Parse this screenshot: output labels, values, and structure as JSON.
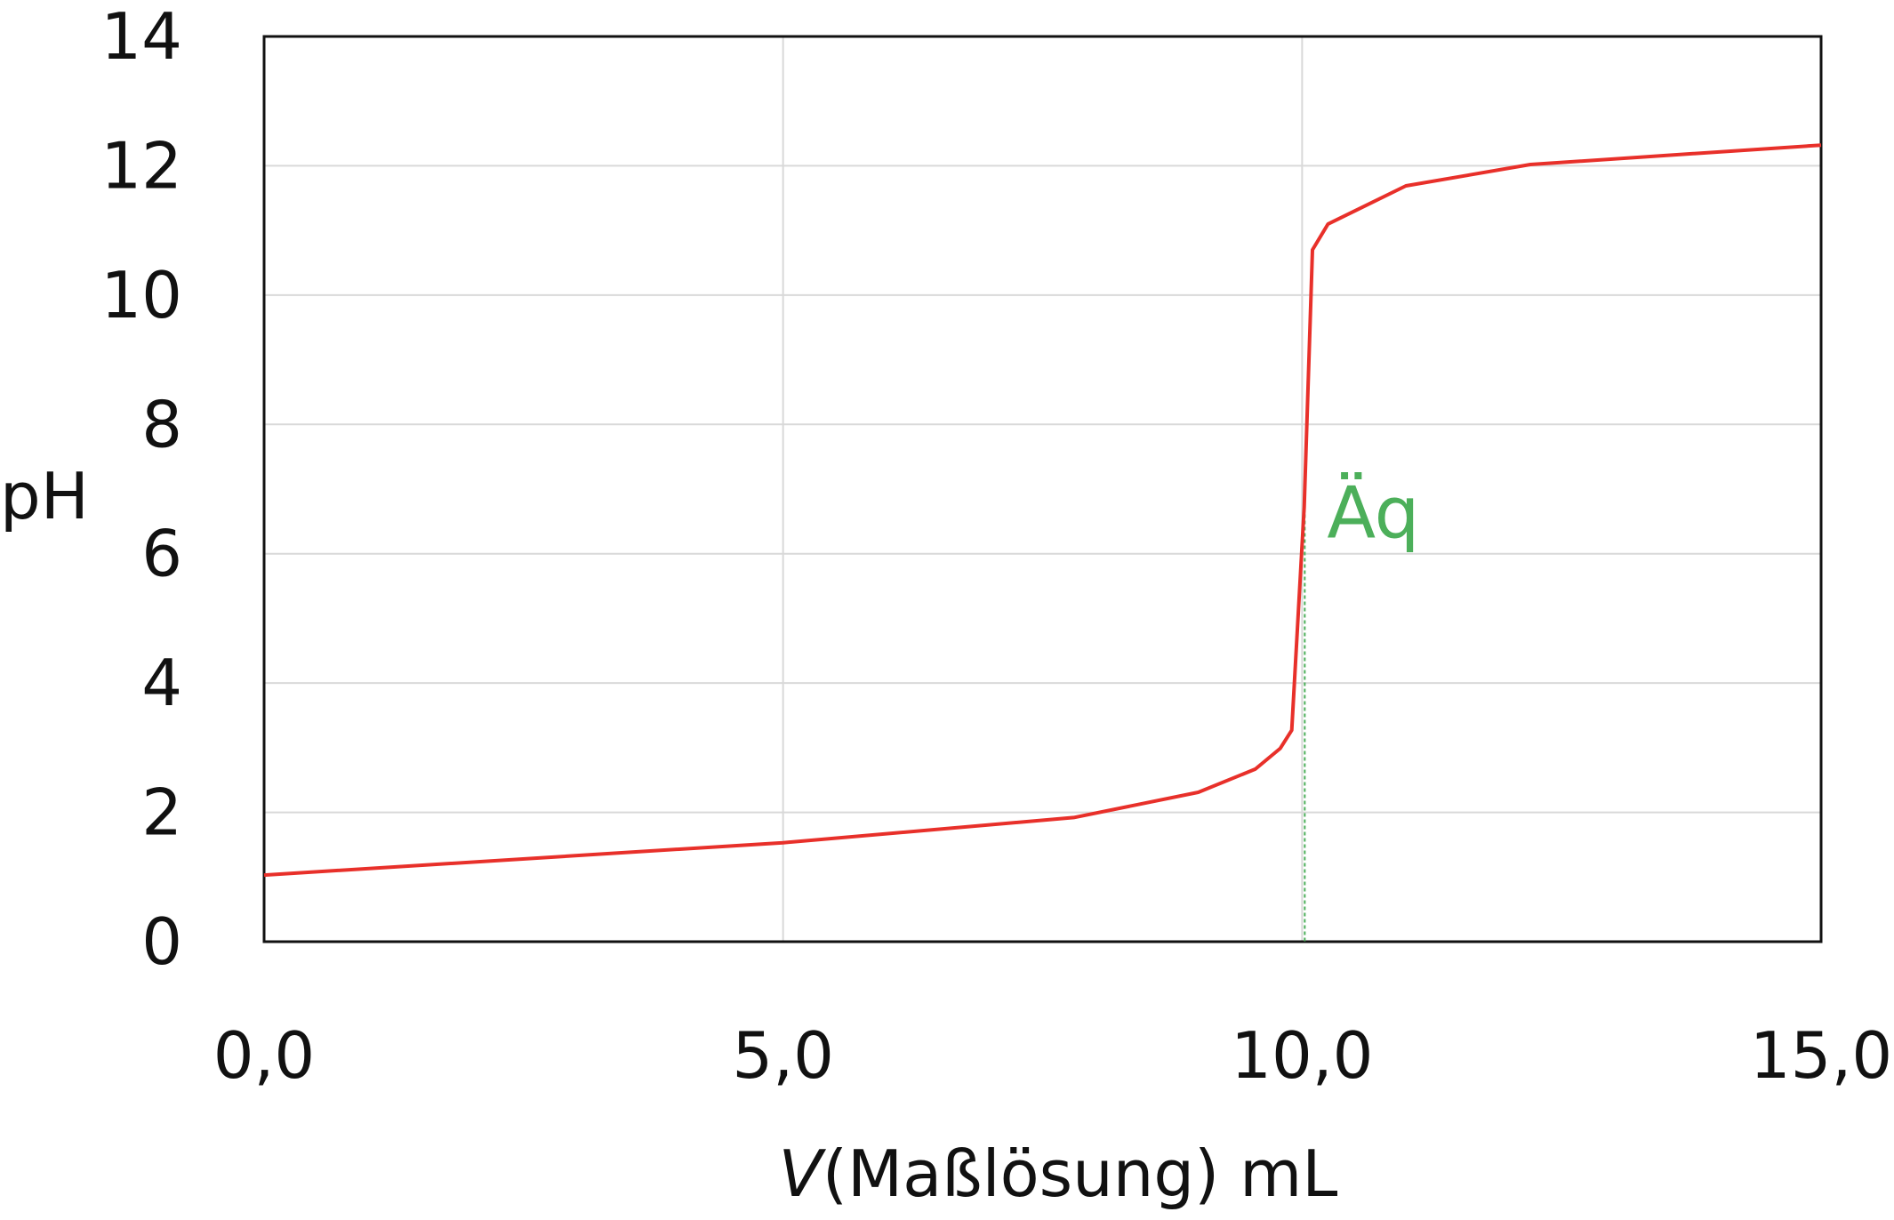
{
  "chart_data": {
    "type": "line",
    "title": "",
    "xlabel_var": "V",
    "xlabel_rest": "(Maßlösung) mL",
    "ylabel": "pH",
    "xlim": [
      0,
      15
    ],
    "ylim": [
      0,
      14
    ],
    "xticks": [
      0,
      5,
      10,
      15
    ],
    "xtick_labels": [
      "0,0",
      "5,0",
      "10,0",
      "15,0"
    ],
    "yticks": [
      0,
      2,
      4,
      6,
      8,
      10,
      12,
      14
    ],
    "ytick_labels": [
      "0",
      "2",
      "4",
      "6",
      "8",
      "10",
      "12",
      "14"
    ],
    "grid": true,
    "series": [
      {
        "name": "pH",
        "color": "#e8302a",
        "x": [
          0,
          5.0,
          7.8,
          9.0,
          9.55,
          9.79,
          9.9,
          10.02,
          10.1,
          10.25,
          11.0,
          12.2,
          15
        ],
        "y": [
          1.03,
          1.53,
          1.92,
          2.31,
          2.67,
          2.99,
          3.27,
          6.72,
          10.7,
          11.1,
          11.69,
          12.02,
          12.32
        ]
      }
    ],
    "annotations": [
      {
        "text": "Äq",
        "x": 10,
        "y_top": 6.8,
        "color": "#4caf5a"
      }
    ]
  }
}
